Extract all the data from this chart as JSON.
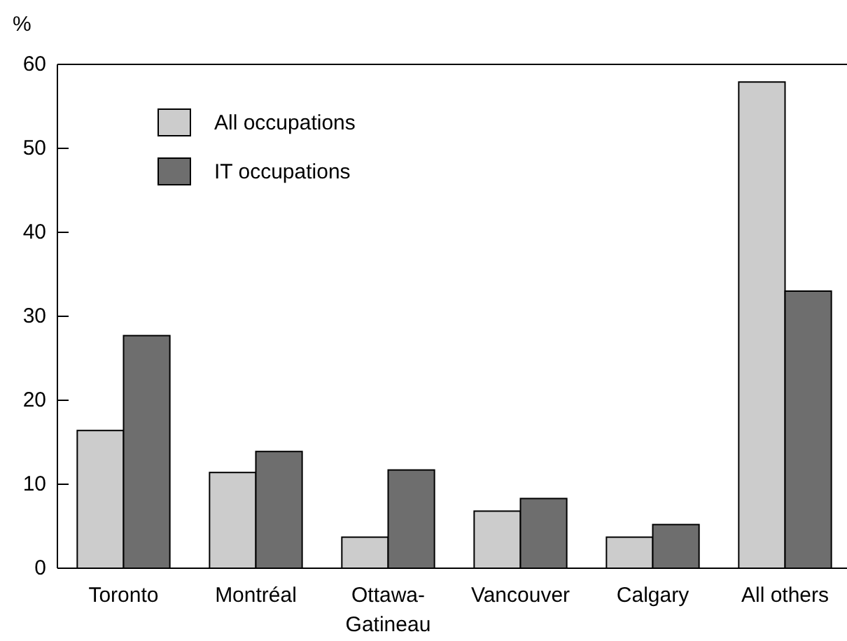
{
  "chart_data": {
    "type": "bar",
    "ylabel": "%",
    "categories": [
      "Toronto",
      "Montréal",
      "Ottawa-\nGatineau",
      "Vancouver",
      "Calgary",
      "All others"
    ],
    "series": [
      {
        "name": "All occupations",
        "color": "#cccccc",
        "values": [
          16.4,
          11.4,
          3.7,
          6.8,
          3.7,
          57.9
        ]
      },
      {
        "name": "IT occupations",
        "color": "#6e6e6e",
        "values": [
          27.7,
          13.9,
          11.7,
          8.3,
          5.2,
          33.0
        ]
      }
    ],
    "ylim": [
      0,
      60
    ],
    "yticks": [
      0,
      10,
      20,
      30,
      40,
      50,
      60
    ],
    "grid": false,
    "legend": "top left"
  }
}
